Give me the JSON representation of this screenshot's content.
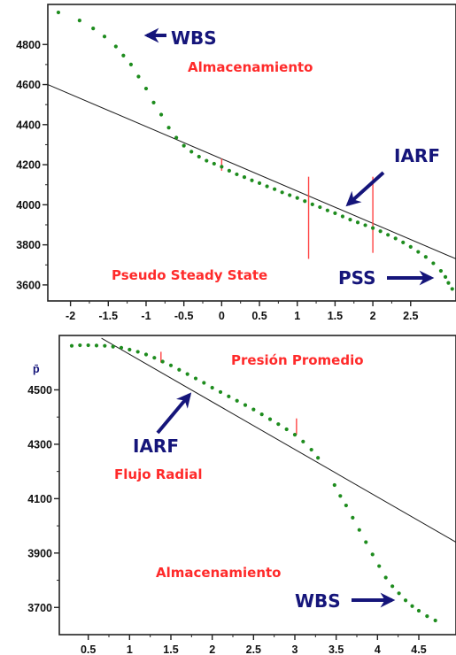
{
  "colors": {
    "points": "#1e8c1e",
    "trend": "#1a1a1a",
    "marker": "#ff4444",
    "annotation_red": "#ff2a2a",
    "annotation_blue": "#15157a"
  },
  "chart_data": [
    {
      "type": "scatter",
      "title": "",
      "xlabel": "",
      "ylabel": "",
      "xlim": [
        -2.3,
        3.1
      ],
      "ylim": [
        3520,
        5000
      ],
      "x_ticks": [
        "-2",
        "-1.5",
        "-1",
        "-0.5",
        "0",
        "0.5",
        "1",
        "1.5",
        "2",
        "2.5"
      ],
      "y_ticks": [
        "4800",
        "4600",
        "4400",
        "4200",
        "4000",
        "3800",
        "3600"
      ],
      "series": [
        {
          "points": [
            [
              -2.16,
              4960
            ],
            [
              -1.88,
              4920
            ],
            [
              -1.7,
              4880
            ],
            [
              -1.55,
              4840
            ],
            [
              -1.4,
              4790
            ],
            [
              -1.3,
              4745
            ],
            [
              -1.2,
              4700
            ],
            [
              -1.1,
              4640
            ],
            [
              -1.0,
              4580
            ],
            [
              -0.9,
              4510
            ],
            [
              -0.8,
              4450
            ],
            [
              -0.7,
              4385
            ],
            [
              -0.6,
              4335
            ],
            [
              -0.5,
              4295
            ],
            [
              -0.4,
              4265
            ],
            [
              -0.3,
              4240
            ],
            [
              -0.2,
              4220
            ],
            [
              -0.1,
              4205
            ],
            [
              0.0,
              4190
            ],
            [
              0.1,
              4170
            ],
            [
              0.2,
              4152
            ],
            [
              0.3,
              4138
            ],
            [
              0.4,
              4122
            ],
            [
              0.5,
              4108
            ],
            [
              0.6,
              4092
            ],
            [
              0.7,
              4078
            ],
            [
              0.8,
              4062
            ],
            [
              0.9,
              4048
            ],
            [
              1.0,
              4034
            ],
            [
              1.1,
              4018
            ],
            [
              1.2,
              4002
            ],
            [
              1.3,
              3988
            ],
            [
              1.4,
              3972
            ],
            [
              1.5,
              3958
            ],
            [
              1.6,
              3942
            ],
            [
              1.7,
              3926
            ],
            [
              1.8,
              3912
            ],
            [
              1.9,
              3898
            ],
            [
              2.0,
              3884
            ],
            [
              2.1,
              3868
            ],
            [
              2.2,
              3850
            ],
            [
              2.3,
              3832
            ],
            [
              2.4,
              3812
            ],
            [
              2.5,
              3790
            ],
            [
              2.6,
              3765
            ],
            [
              2.7,
              3740
            ],
            [
              2.8,
              3708
            ],
            [
              2.9,
              3670
            ],
            [
              2.96,
              3640
            ],
            [
              3.0,
              3610
            ],
            [
              3.05,
              3580
            ]
          ]
        }
      ],
      "trend_line": {
        "points": [
          [
            -2.3,
            4600
          ],
          [
            3.1,
            3730
          ]
        ]
      },
      "markers": [
        {
          "x": 0.0,
          "y_range": [
            4170,
            4230
          ],
          "color": "#ff4444"
        },
        {
          "x": 1.15,
          "y_range": [
            3730,
            4140
          ],
          "color": "#ff4444"
        },
        {
          "x": 2.0,
          "y_range": [
            3760,
            4140
          ],
          "color": "#ff4444"
        }
      ],
      "annotations": [
        {
          "text": "WBS",
          "color": "blue",
          "arrow": "left"
        },
        {
          "text": "Almacenamiento",
          "color": "red"
        },
        {
          "text": "IARF",
          "color": "blue",
          "arrow": "down-left"
        },
        {
          "text": "Pseudo Steady State",
          "color": "red"
        },
        {
          "text": "PSS",
          "color": "blue",
          "arrow": "right"
        }
      ]
    },
    {
      "type": "scatter",
      "title": "",
      "xlabel": "",
      "ylabel": "",
      "xlim": [
        0.15,
        4.95
      ],
      "ylim": [
        3600,
        4700
      ],
      "x_ticks": [
        "0.5",
        "1",
        "1.5",
        "2",
        "2.5",
        "3",
        "3.5",
        "4",
        "4.5"
      ],
      "y_ticks": [
        "4500",
        "4300",
        "4100",
        "3900",
        "3700"
      ],
      "y_axis_symbol": "p̄",
      "series": [
        {
          "points": [
            [
              0.3,
              4662
            ],
            [
              0.4,
              4664
            ],
            [
              0.5,
              4664
            ],
            [
              0.6,
              4663
            ],
            [
              0.7,
              4662
            ],
            [
              0.8,
              4659
            ],
            [
              0.9,
              4655
            ],
            [
              1.0,
              4648
            ],
            [
              1.1,
              4640
            ],
            [
              1.2,
              4630
            ],
            [
              1.3,
              4618
            ],
            [
              1.4,
              4604
            ],
            [
              1.5,
              4590
            ],
            [
              1.6,
              4574
            ],
            [
              1.7,
              4558
            ],
            [
              1.8,
              4542
            ],
            [
              1.9,
              4526
            ],
            [
              2.0,
              4508
            ],
            [
              2.1,
              4492
            ],
            [
              2.2,
              4476
            ],
            [
              2.3,
              4460
            ],
            [
              2.4,
              4444
            ],
            [
              2.5,
              4428
            ],
            [
              2.6,
              4410
            ],
            [
              2.7,
              4392
            ],
            [
              2.8,
              4374
            ],
            [
              2.9,
              4355
            ],
            [
              3.0,
              4335
            ],
            [
              3.1,
              4310
            ],
            [
              3.2,
              4280
            ],
            [
              3.28,
              4250
            ],
            [
              3.48,
              4150
            ],
            [
              3.55,
              4110
            ],
            [
              3.62,
              4075
            ],
            [
              3.7,
              4030
            ],
            [
              3.78,
              3985
            ],
            [
              3.86,
              3940
            ],
            [
              3.94,
              3895
            ],
            [
              4.02,
              3852
            ],
            [
              4.1,
              3810
            ],
            [
              4.18,
              3778
            ],
            [
              4.26,
              3752
            ],
            [
              4.34,
              3726
            ],
            [
              4.42,
              3705
            ],
            [
              4.5,
              3688
            ],
            [
              4.6,
              3668
            ],
            [
              4.7,
              3652
            ]
          ]
        }
      ],
      "trend_line": {
        "points": [
          [
            0.66,
            4690
          ],
          [
            4.95,
            3940
          ]
        ]
      },
      "markers": [
        {
          "x": 1.38,
          "y_range": [
            4600,
            4640
          ],
          "color": "#ff4444"
        },
        {
          "x": 3.02,
          "y_range": [
            4335,
            4395
          ],
          "color": "#ff4444"
        }
      ],
      "annotations": [
        {
          "text": "Presión Promedio",
          "color": "red"
        },
        {
          "text": "IARF",
          "color": "blue",
          "arrow": "up-right"
        },
        {
          "text": "Flujo Radial",
          "color": "red"
        },
        {
          "text": "Almacenamiento",
          "color": "red"
        },
        {
          "text": "WBS",
          "color": "blue",
          "arrow": "right"
        }
      ]
    }
  ]
}
